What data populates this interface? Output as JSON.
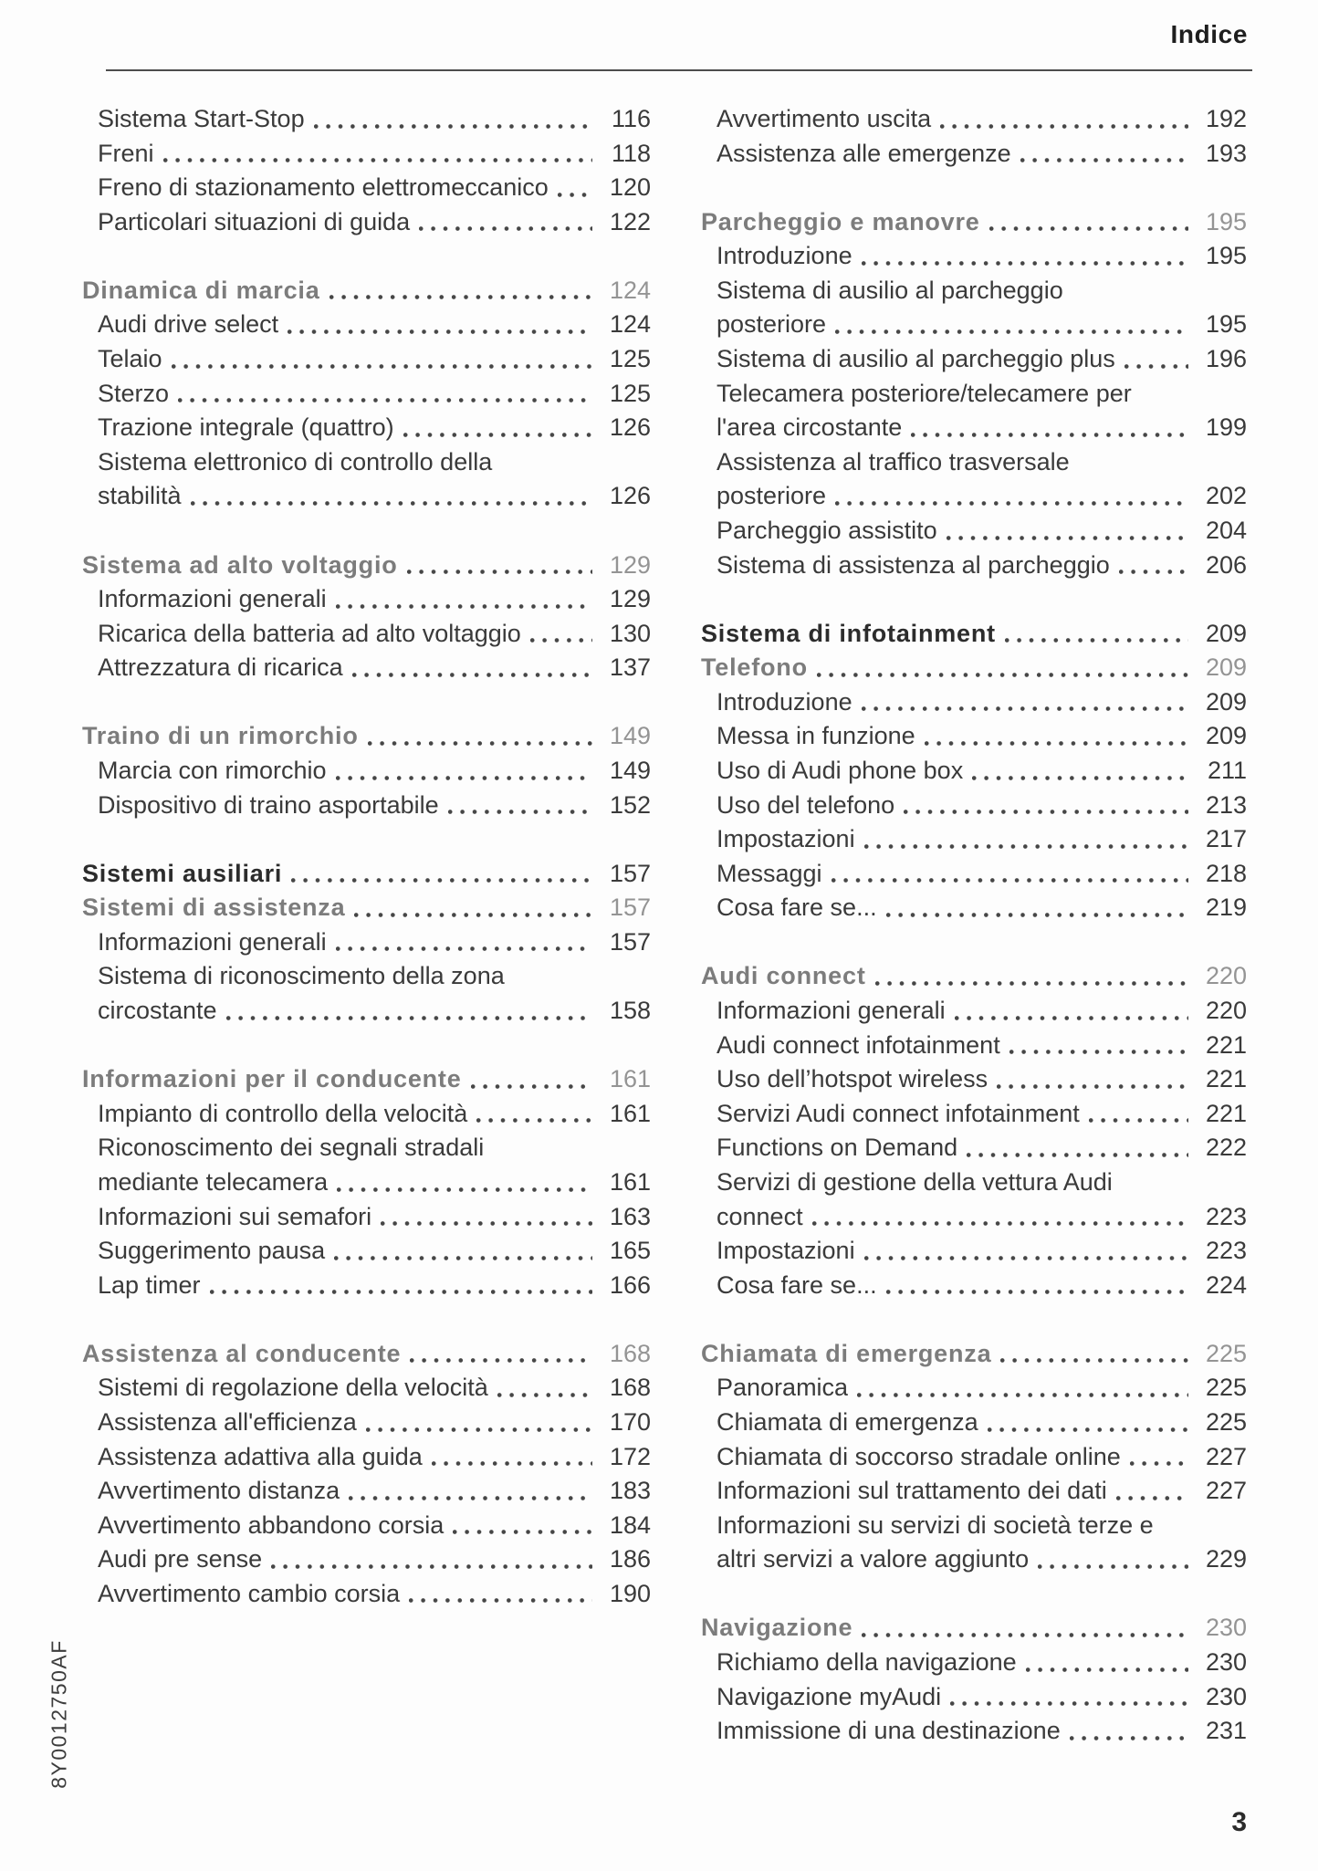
{
  "page": {
    "title": "Indice",
    "footer_page_number": "3",
    "product_code": "8Y0012750AF"
  },
  "colors": {
    "item_text": "#3a3a3a",
    "heading_gray": "#7c7c7c",
    "heading_gray_number": "#949494",
    "heading_dark": "#2c2c2c",
    "rule": "#4d4d4d",
    "dot_leader": "#464646",
    "background": "#fdfdfd"
  },
  "toc": {
    "left": [
      {
        "s": "i",
        "t": "Sistema Start-Stop",
        "n": "116"
      },
      {
        "s": "i",
        "t": "Freni",
        "n": "118"
      },
      {
        "s": "i",
        "t": "Freno di stazionamento elettromeccanico",
        "n": "120"
      },
      {
        "s": "i",
        "t": "Particolari situazioni di guida",
        "n": "122"
      },
      {
        "s": "sp",
        "t": "",
        "n": ""
      },
      {
        "s": "hg",
        "t": "Dinamica di marcia",
        "n": "124"
      },
      {
        "s": "i",
        "t": "Audi drive select",
        "n": "124"
      },
      {
        "s": "i",
        "t": "Telaio",
        "n": "125"
      },
      {
        "s": "i",
        "t": "Sterzo",
        "n": "125"
      },
      {
        "s": "i",
        "t": "Trazione integrale (quattro)",
        "n": "126"
      },
      {
        "s": "w",
        "t": "Sistema elettronico di controllo della",
        "n": ""
      },
      {
        "s": "i",
        "t": "stabilità",
        "n": "126"
      },
      {
        "s": "sp",
        "t": "",
        "n": ""
      },
      {
        "s": "hg",
        "t": "Sistema ad alto voltaggio",
        "n": "129"
      },
      {
        "s": "i",
        "t": "Informazioni generali",
        "n": "129"
      },
      {
        "s": "i",
        "t": "Ricarica della batteria ad alto voltaggio",
        "n": "130"
      },
      {
        "s": "i",
        "t": "Attrezzatura di ricarica",
        "n": "137"
      },
      {
        "s": "sp",
        "t": "",
        "n": ""
      },
      {
        "s": "hg",
        "t": "Traino di un rimorchio",
        "n": "149"
      },
      {
        "s": "i",
        "t": "Marcia con rimorchio",
        "n": "149"
      },
      {
        "s": "i",
        "t": "Dispositivo di traino asportabile",
        "n": "152"
      },
      {
        "s": "sp",
        "t": "",
        "n": ""
      },
      {
        "s": "hd",
        "t": "Sistemi ausiliari",
        "n": "157"
      },
      {
        "s": "hg",
        "t": "Sistemi di assistenza",
        "n": "157"
      },
      {
        "s": "i",
        "t": "Informazioni generali",
        "n": "157"
      },
      {
        "s": "w",
        "t": "Sistema di riconoscimento della zona",
        "n": ""
      },
      {
        "s": "i",
        "t": "circostante",
        "n": "158"
      },
      {
        "s": "sp",
        "t": "",
        "n": ""
      },
      {
        "s": "hg",
        "t": "Informazioni per il conducente",
        "n": "161"
      },
      {
        "s": "i",
        "t": "Impianto di controllo della velocità",
        "n": "161"
      },
      {
        "s": "w",
        "t": "Riconoscimento dei segnali stradali",
        "n": ""
      },
      {
        "s": "i",
        "t": "mediante telecamera",
        "n": "161"
      },
      {
        "s": "i",
        "t": "Informazioni sui semafori",
        "n": "163"
      },
      {
        "s": "i",
        "t": "Suggerimento pausa",
        "n": "165"
      },
      {
        "s": "i",
        "t": "Lap timer",
        "n": "166"
      },
      {
        "s": "sp",
        "t": "",
        "n": ""
      },
      {
        "s": "hg",
        "t": "Assistenza al conducente",
        "n": "168"
      },
      {
        "s": "i",
        "t": "Sistemi di regolazione della velocità",
        "n": "168"
      },
      {
        "s": "i",
        "t": "Assistenza all'efficienza",
        "n": "170"
      },
      {
        "s": "i",
        "t": "Assistenza adattiva alla guida",
        "n": "172"
      },
      {
        "s": "i",
        "t": "Avvertimento distanza",
        "n": "183"
      },
      {
        "s": "i",
        "t": "Avvertimento abbandono corsia",
        "n": "184"
      },
      {
        "s": "i",
        "t": "Audi pre sense",
        "n": "186"
      },
      {
        "s": "i",
        "t": "Avvertimento cambio corsia",
        "n": "190"
      }
    ],
    "right": [
      {
        "s": "i",
        "t": "Avvertimento uscita",
        "n": "192"
      },
      {
        "s": "i",
        "t": "Assistenza alle emergenze",
        "n": "193"
      },
      {
        "s": "sp",
        "t": "",
        "n": ""
      },
      {
        "s": "hg",
        "t": "Parcheggio e manovre",
        "n": "195"
      },
      {
        "s": "i",
        "t": "Introduzione",
        "n": "195"
      },
      {
        "s": "w",
        "t": "Sistema di ausilio al parcheggio",
        "n": ""
      },
      {
        "s": "i",
        "t": "posteriore",
        "n": "195"
      },
      {
        "s": "i",
        "t": "Sistema di ausilio al parcheggio plus",
        "n": "196"
      },
      {
        "s": "w",
        "t": "Telecamera posteriore/telecamere per",
        "n": ""
      },
      {
        "s": "i",
        "t": "l'area circostante",
        "n": "199"
      },
      {
        "s": "w",
        "t": "Assistenza al traffico trasversale",
        "n": ""
      },
      {
        "s": "i",
        "t": "posteriore",
        "n": "202"
      },
      {
        "s": "i",
        "t": "Parcheggio assistito",
        "n": "204"
      },
      {
        "s": "i",
        "t": "Sistema di assistenza al parcheggio",
        "n": "206"
      },
      {
        "s": "sp",
        "t": "",
        "n": ""
      },
      {
        "s": "hd",
        "t": "Sistema di infotainment",
        "n": "209"
      },
      {
        "s": "hg",
        "t": "Telefono",
        "n": "209"
      },
      {
        "s": "i",
        "t": "Introduzione",
        "n": "209"
      },
      {
        "s": "i",
        "t": "Messa in funzione",
        "n": "209"
      },
      {
        "s": "i",
        "t": "Uso di Audi phone box",
        "n": "211"
      },
      {
        "s": "i",
        "t": "Uso del telefono",
        "n": "213"
      },
      {
        "s": "i",
        "t": "Impostazioni",
        "n": "217"
      },
      {
        "s": "i",
        "t": "Messaggi",
        "n": "218"
      },
      {
        "s": "i",
        "t": "Cosa fare se...",
        "n": "219"
      },
      {
        "s": "sp",
        "t": "",
        "n": ""
      },
      {
        "s": "hg",
        "t": "Audi connect",
        "n": "220"
      },
      {
        "s": "i",
        "t": "Informazioni generali",
        "n": "220"
      },
      {
        "s": "i",
        "t": "Audi connect infotainment",
        "n": "221"
      },
      {
        "s": "i",
        "t": "Uso dell’hotspot wireless",
        "n": "221"
      },
      {
        "s": "i",
        "t": "Servizi Audi connect infotainment",
        "n": "221"
      },
      {
        "s": "i",
        "t": "Functions on Demand",
        "n": "222"
      },
      {
        "s": "w",
        "t": "Servizi di gestione della vettura Audi",
        "n": ""
      },
      {
        "s": "i",
        "t": "connect",
        "n": "223"
      },
      {
        "s": "i",
        "t": "Impostazioni",
        "n": "223"
      },
      {
        "s": "i",
        "t": "Cosa fare se...",
        "n": "224"
      },
      {
        "s": "sp",
        "t": "",
        "n": ""
      },
      {
        "s": "hg",
        "t": "Chiamata di emergenza",
        "n": "225"
      },
      {
        "s": "i",
        "t": "Panoramica",
        "n": "225"
      },
      {
        "s": "i",
        "t": "Chiamata di emergenza",
        "n": "225"
      },
      {
        "s": "i",
        "t": "Chiamata di soccorso stradale online",
        "n": "227"
      },
      {
        "s": "i",
        "t": "Informazioni sul trattamento dei dati",
        "n": "227"
      },
      {
        "s": "w",
        "t": "Informazioni su servizi di società terze e",
        "n": ""
      },
      {
        "s": "i",
        "t": "altri servizi a valore aggiunto",
        "n": "229"
      },
      {
        "s": "sp",
        "t": "",
        "n": ""
      },
      {
        "s": "hg",
        "t": "Navigazione",
        "n": "230"
      },
      {
        "s": "i",
        "t": "Richiamo della navigazione",
        "n": "230"
      },
      {
        "s": "i",
        "t": "Navigazione myAudi",
        "n": "230"
      },
      {
        "s": "i",
        "t": "Immissione di una destinazione",
        "n": "231"
      }
    ]
  }
}
